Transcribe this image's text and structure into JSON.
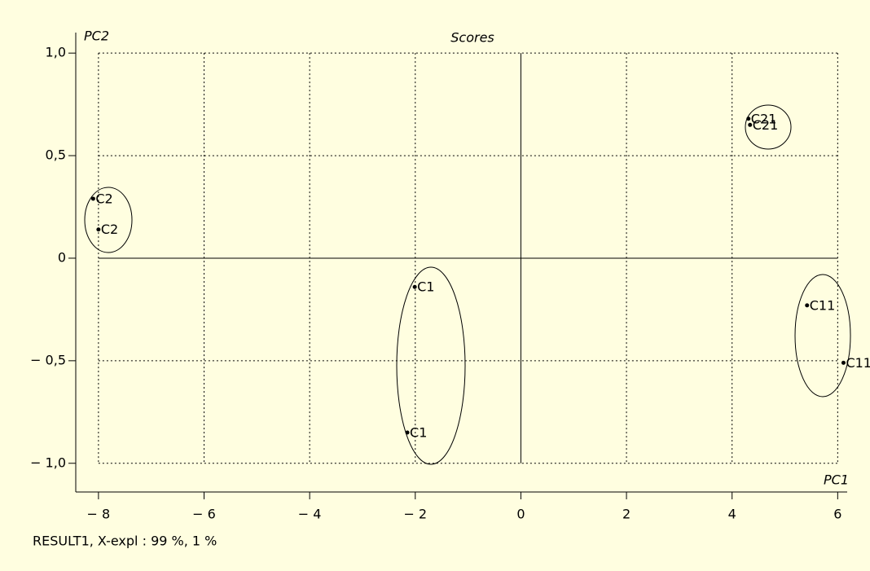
{
  "chart_data": {
    "type": "scatter",
    "title": "Scores",
    "x_label": "PC1",
    "y_label": "PC2",
    "footer": "RESULT1, X-expl : 99 %, 1 %",
    "x": [
      -8.1,
      -8.0,
      -2.01,
      -2.15,
      4.31,
      4.34,
      5.42,
      6.11
    ],
    "values": [
      0.29,
      0.14,
      -0.14,
      -0.85,
      0.68,
      0.65,
      -0.23,
      -0.51
    ],
    "labels": [
      "C2",
      "C2",
      "C1",
      "C1",
      "C21",
      "C21",
      "C11",
      "C11"
    ],
    "color": "#000000",
    "xlim": [
      -8.43,
      6.18
    ],
    "ylim": [
      -1.14,
      1.1
    ],
    "xticks": [
      {
        "value": -8,
        "label": "− 8"
      },
      {
        "value": -6,
        "label": "− 6"
      },
      {
        "value": -4,
        "label": "− 4"
      },
      {
        "value": -2,
        "label": "− 2"
      },
      0,
      2,
      4,
      6
    ],
    "yticks": [
      {
        "value": -1,
        "label": "− 1,0"
      },
      {
        "value": -0.5,
        "label": "− 0,5"
      },
      0,
      {
        "value": 0.5,
        "label": "0,5"
      },
      {
        "value": 1,
        "label": "1,0"
      }
    ],
    "grid": true
  }
}
